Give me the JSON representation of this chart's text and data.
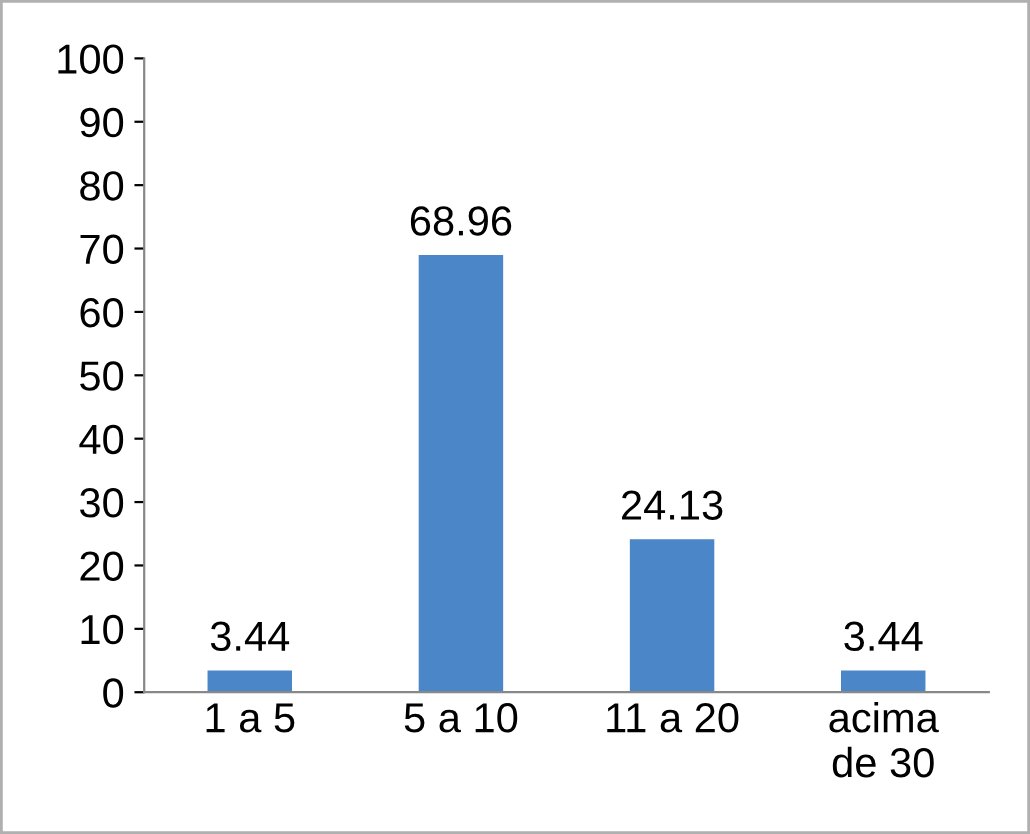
{
  "chart_data": {
    "type": "bar",
    "categories": [
      "1 a 5",
      "5 a 10",
      "11 a 20",
      "acima\nde 30"
    ],
    "values": [
      3.44,
      68.96,
      24.13,
      3.44
    ],
    "color": "#4a86c8",
    "ylim": [
      0,
      100
    ],
    "yticks": [
      0,
      10,
      20,
      30,
      40,
      50,
      60,
      70,
      80,
      90,
      100
    ],
    "data_labels": true,
    "grid": false,
    "legend": false
  }
}
